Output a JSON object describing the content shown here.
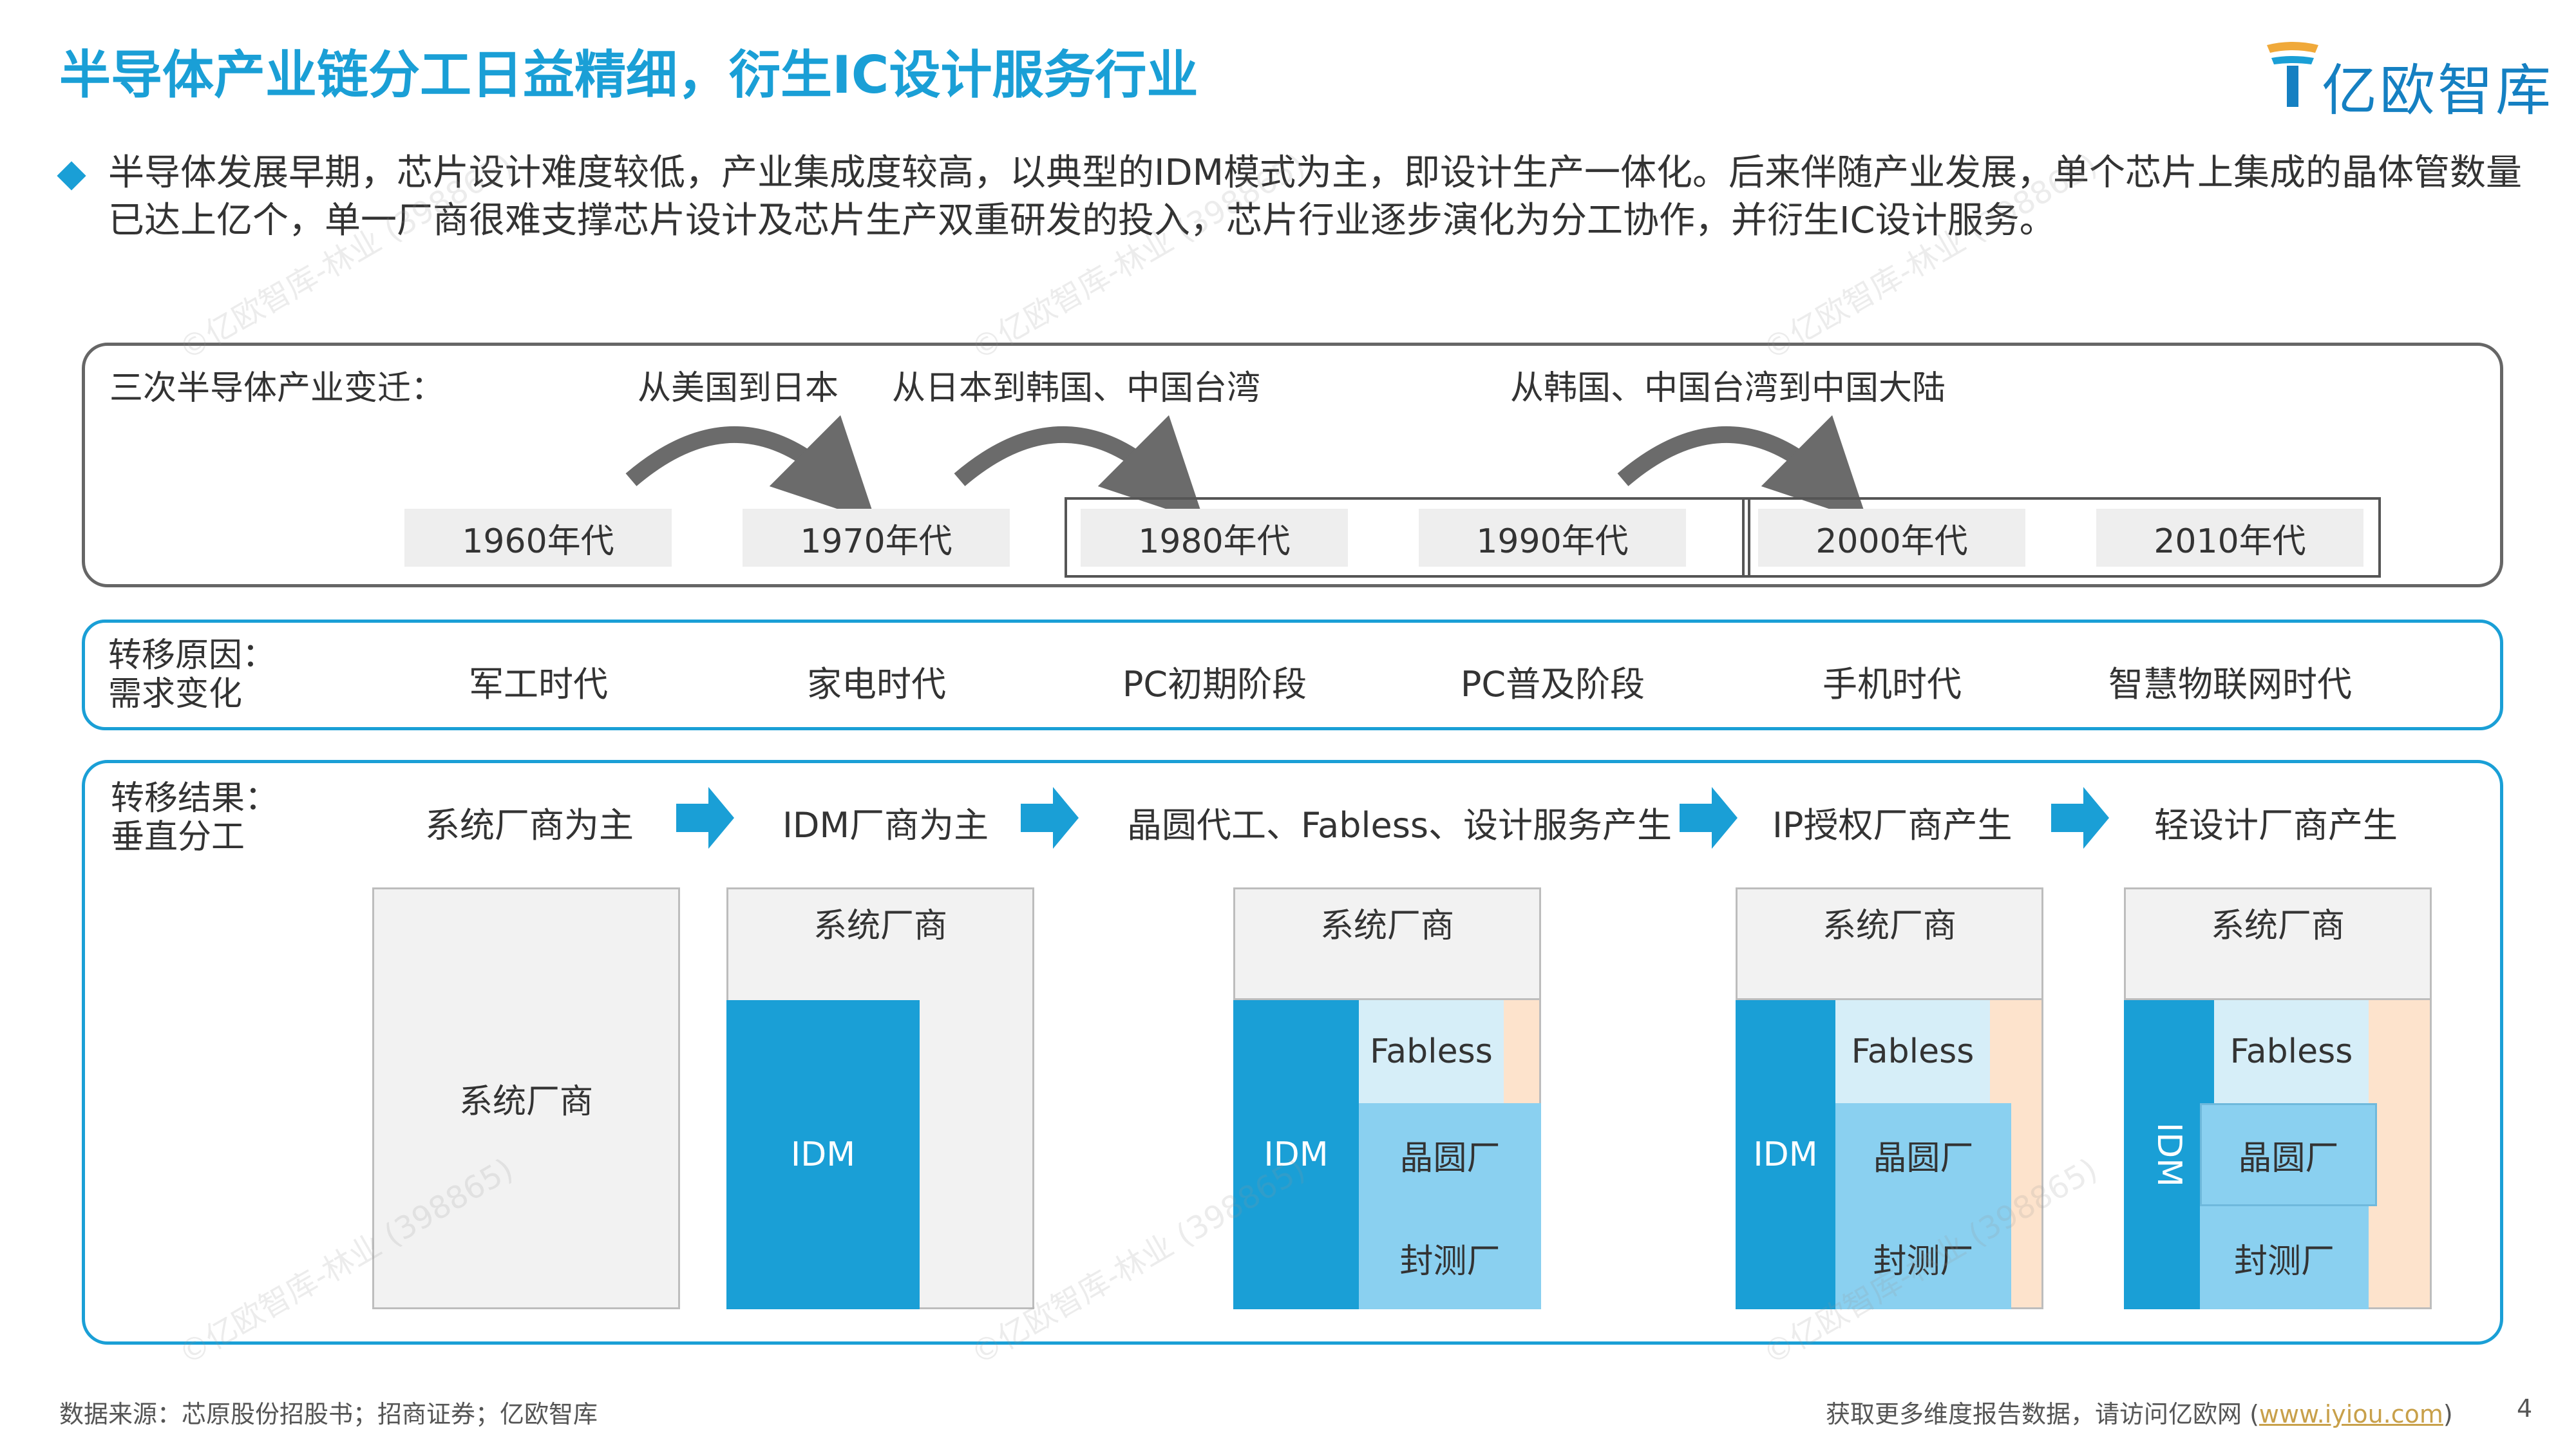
{
  "header": {
    "title": "半导体产业链分工日益精细，衍生IC设计服务行业",
    "logo_text": "亿欧智库"
  },
  "intro": {
    "text": "半导体发展早期，芯片设计难度较低，产业集成度较高，以典型的IDM模式为主，即设计生产一体化。后来伴随产业发展，单个芯片上集成的晶体管数量已达上亿个，单一厂商很难支撑芯片设计及芯片生产双重研发的投入，芯片行业逐步演化为分工协作，并衍生IC设计服务。"
  },
  "shifts": {
    "label": "三次半导体产业变迁：",
    "arrows": [
      "从美国到日本",
      "从日本到韩国、中国台湾",
      "从韩国、中国台湾到中国大陆"
    ],
    "decades": [
      "1960年代",
      "1970年代",
      "1980年代",
      "1990年代",
      "2000年代",
      "2010年代"
    ]
  },
  "reasons": {
    "label_line1": "转移原因：",
    "label_line2": "需求变化",
    "eras": [
      "军工时代",
      "家电时代",
      "PC初期阶段",
      "PC普及阶段",
      "手机时代",
      "智慧物联网时代"
    ]
  },
  "results": {
    "label_line1": "转移结果：",
    "label_line2": "垂直分工",
    "stages": [
      "系统厂商为主",
      "IDM厂商为主",
      "晶圆代工、Fabless、设计服务产生",
      "IP授权厂商产生",
      "轻设计厂商产生"
    ],
    "block_labels": {
      "system": "系统厂商",
      "idm": "IDM",
      "fabless": "Fabless",
      "foundry": "晶圆厂",
      "packaging": "封测厂"
    }
  },
  "colors": {
    "title": "#1a9fd6",
    "idm": "#1a9fd6",
    "fabless": "#d6eef8",
    "foundry": "#8ad0f0",
    "ip": "#fde3cc",
    "system": "#f2f2f2"
  },
  "footer": {
    "source": "数据来源：芯原股份招股书；招商证券；亿欧智库",
    "more_prefix": "获取更多维度报告数据，请访问亿欧网 (",
    "link": "www.iyiou.com",
    "more_suffix": ")",
    "page": "4"
  },
  "watermark": "©亿欧智库-林业 (398865)"
}
